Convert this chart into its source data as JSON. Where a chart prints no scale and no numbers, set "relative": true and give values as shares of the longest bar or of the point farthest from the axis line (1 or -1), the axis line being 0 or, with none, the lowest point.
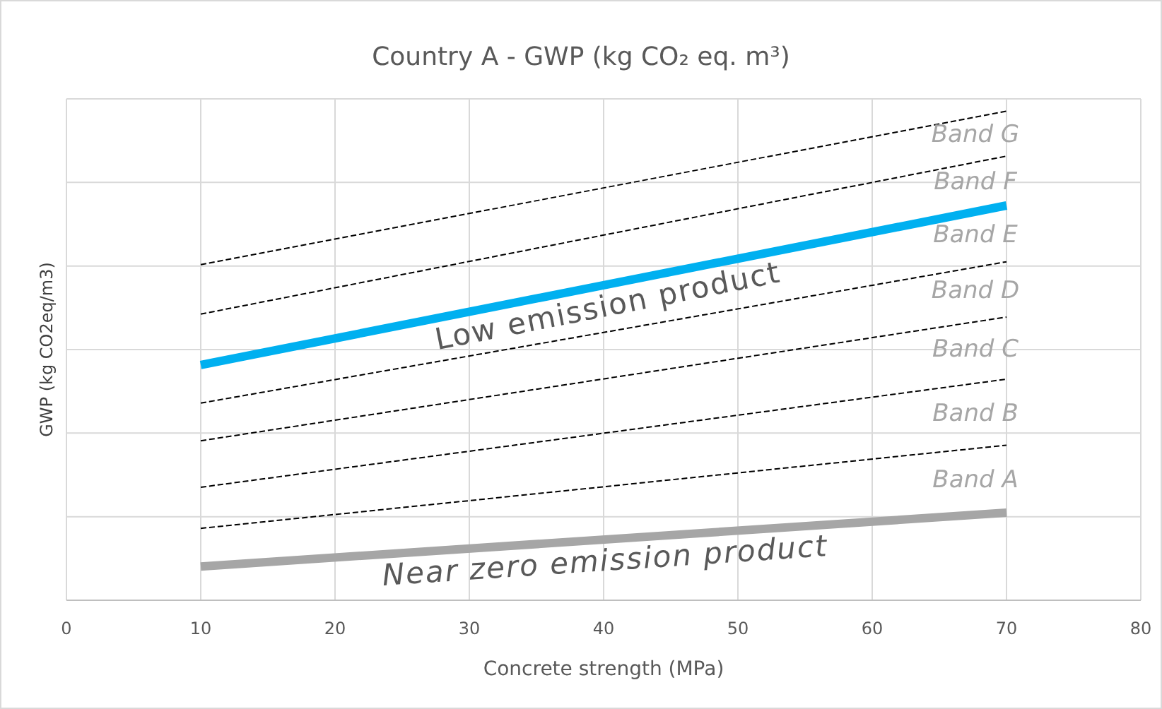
{
  "chart_data": {
    "type": "line",
    "title": "Country A - GWP (kg CO₂ eq. m³)",
    "xlabel": "Concrete strength (MPa)",
    "ylabel": "GWP (kg CO2eq/m3)",
    "relative": true,
    "xlim": [
      0,
      80
    ],
    "xticks": [
      0,
      10,
      20,
      30,
      40,
      50,
      60,
      70,
      80
    ],
    "grid": true,
    "x": [
      10,
      70
    ],
    "series": [
      {
        "color": "#000000",
        "line_style": "dashed",
        "values": [
          0.686,
          1
        ]
      },
      {
        "color": "#000000",
        "line_style": "dashed",
        "values": [
          0.585,
          0.908
        ]
      },
      {
        "name": "Low emission product",
        "color": "#00b0f0",
        "line_style": "solid",
        "values": [
          0.481,
          0.807
        ]
      },
      {
        "color": "#000000",
        "line_style": "dashed",
        "values": [
          0.403,
          0.692
        ]
      },
      {
        "color": "#000000",
        "line_style": "dashed",
        "values": [
          0.326,
          0.579
        ]
      },
      {
        "color": "#000000",
        "line_style": "dashed",
        "values": [
          0.231,
          0.452
        ]
      },
      {
        "color": "#000000",
        "line_style": "dashed",
        "values": [
          0.147,
          0.317
        ]
      },
      {
        "name": "Near zero emission product",
        "color": "#a6a6a6",
        "line_style": "solid",
        "values": [
          0.069,
          0.179
        ]
      }
    ],
    "annotations": [
      "Band G",
      "Band F",
      "Band E",
      "Band D",
      "Band C",
      "Band B",
      "Band A"
    ]
  }
}
